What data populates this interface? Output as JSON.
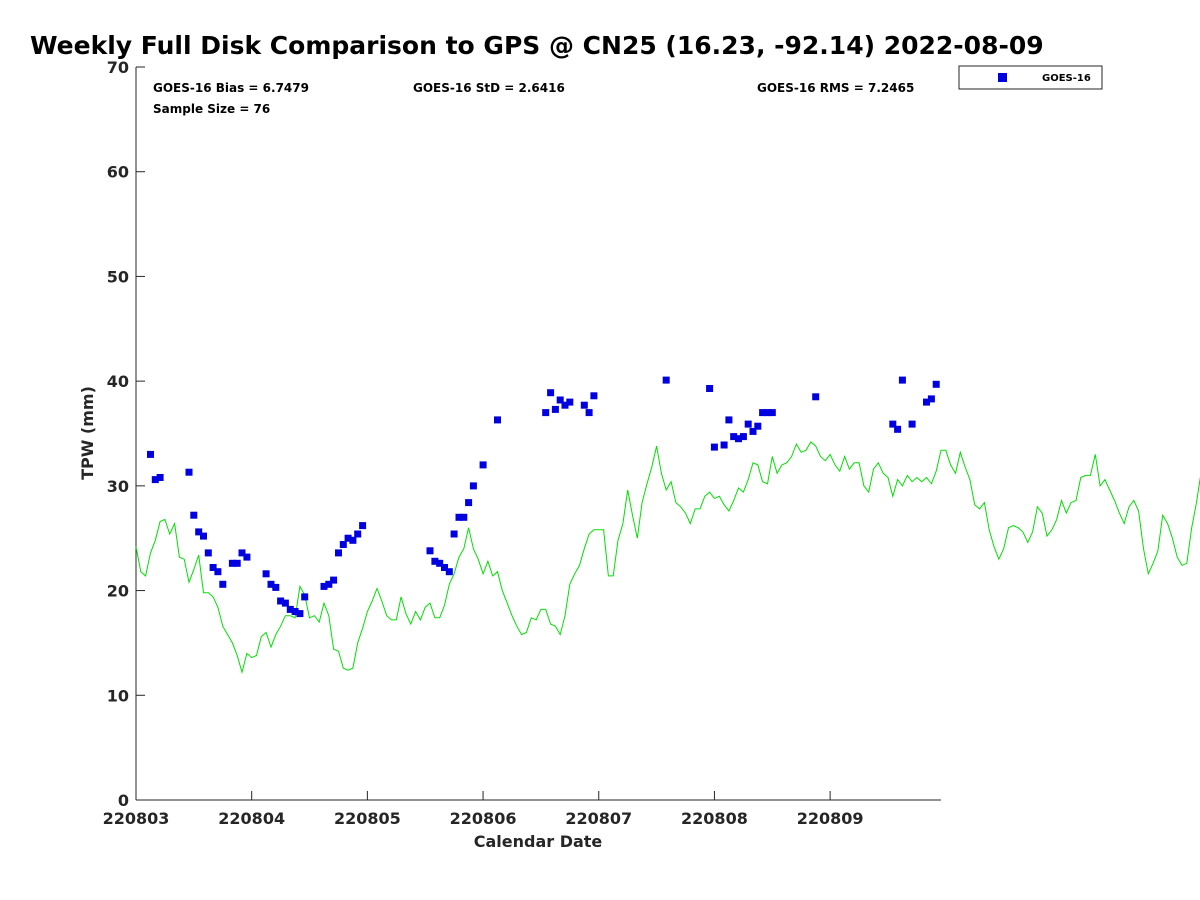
{
  "chart_data": {
    "type": "scatter",
    "title": "Weekly Full Disk Comparison to GPS @ CN25 (16.23, -92.14) 2022-08-09",
    "xlabel": "Calendar Date",
    "ylabel": "TPW (mm)",
    "x_axis_type": "date",
    "xlim": [
      "2022-08-03 00:00",
      "2022-08-09 23:00"
    ],
    "ylim": [
      0,
      70
    ],
    "yticks": [
      0,
      10,
      20,
      30,
      40,
      50,
      60,
      70
    ],
    "xticks": [
      {
        "value": "2022-08-03 00:00",
        "label": "220803"
      },
      {
        "value": "2022-08-04 00:00",
        "label": "220804"
      },
      {
        "value": "2022-08-05 00:00",
        "label": "220805"
      },
      {
        "value": "2022-08-06 00:00",
        "label": "220806"
      },
      {
        "value": "2022-08-07 00:00",
        "label": "220807"
      },
      {
        "value": "2022-08-08 00:00",
        "label": "220808"
      },
      {
        "value": "2022-08-09 00:00",
        "label": "220809"
      }
    ],
    "grid": false,
    "legend_position": "outside-top-right",
    "stats": {
      "bias": "GOES-16 Bias = 6.7479",
      "std": "GOES-16 StD = 2.6416",
      "rms": "GOES-16 RMS = 7.2465",
      "sample": "Sample Size = 76"
    },
    "series": [
      {
        "name": "GOES-16",
        "kind": "scatter",
        "marker": "square",
        "color": "#0000e0",
        "points": [
          [
            "2022-08-03 03:00",
            33.0
          ],
          [
            "2022-08-03 04:00",
            30.6
          ],
          [
            "2022-08-03 05:00",
            30.8
          ],
          [
            "2022-08-03 11:00",
            31.3
          ],
          [
            "2022-08-03 12:00",
            27.2
          ],
          [
            "2022-08-03 13:00",
            25.6
          ],
          [
            "2022-08-03 14:00",
            25.2
          ],
          [
            "2022-08-03 15:00",
            23.6
          ],
          [
            "2022-08-03 16:00",
            22.2
          ],
          [
            "2022-08-03 17:00",
            21.8
          ],
          [
            "2022-08-03 18:00",
            20.6
          ],
          [
            "2022-08-03 20:00",
            22.6
          ],
          [
            "2022-08-03 21:00",
            22.6
          ],
          [
            "2022-08-03 22:00",
            23.6
          ],
          [
            "2022-08-03 23:00",
            23.2
          ],
          [
            "2022-08-04 03:00",
            21.6
          ],
          [
            "2022-08-04 04:00",
            20.6
          ],
          [
            "2022-08-04 05:00",
            20.3
          ],
          [
            "2022-08-04 06:00",
            19.0
          ],
          [
            "2022-08-04 07:00",
            18.8
          ],
          [
            "2022-08-04 08:00",
            18.2
          ],
          [
            "2022-08-04 09:00",
            18.0
          ],
          [
            "2022-08-04 10:00",
            17.8
          ],
          [
            "2022-08-04 11:00",
            19.4
          ],
          [
            "2022-08-04 15:00",
            20.4
          ],
          [
            "2022-08-04 16:00",
            20.6
          ],
          [
            "2022-08-04 17:00",
            21.0
          ],
          [
            "2022-08-04 18:00",
            23.6
          ],
          [
            "2022-08-04 19:00",
            24.4
          ],
          [
            "2022-08-04 20:00",
            25.0
          ],
          [
            "2022-08-04 21:00",
            24.8
          ],
          [
            "2022-08-04 22:00",
            25.4
          ],
          [
            "2022-08-04 23:00",
            26.2
          ],
          [
            "2022-08-05 13:00",
            23.8
          ],
          [
            "2022-08-05 14:00",
            22.8
          ],
          [
            "2022-08-05 15:00",
            22.6
          ],
          [
            "2022-08-05 16:00",
            22.2
          ],
          [
            "2022-08-05 17:00",
            21.8
          ],
          [
            "2022-08-05 18:00",
            25.4
          ],
          [
            "2022-08-05 19:00",
            27.0
          ],
          [
            "2022-08-05 20:00",
            27.0
          ],
          [
            "2022-08-05 21:00",
            28.4
          ],
          [
            "2022-08-05 22:00",
            30.0
          ],
          [
            "2022-08-06 00:00",
            32.0
          ],
          [
            "2022-08-06 03:00",
            36.3
          ],
          [
            "2022-08-06 13:00",
            37.0
          ],
          [
            "2022-08-06 14:00",
            38.9
          ],
          [
            "2022-08-06 15:00",
            37.3
          ],
          [
            "2022-08-06 16:00",
            38.2
          ],
          [
            "2022-08-06 17:00",
            37.7
          ],
          [
            "2022-08-06 18:00",
            38.0
          ],
          [
            "2022-08-06 21:00",
            37.7
          ],
          [
            "2022-08-06 22:00",
            37.0
          ],
          [
            "2022-08-06 23:00",
            38.6
          ],
          [
            "2022-08-07 14:00",
            40.1
          ],
          [
            "2022-08-07 23:00",
            39.3
          ],
          [
            "2022-08-08 00:00",
            33.7
          ],
          [
            "2022-08-08 02:00",
            33.9
          ],
          [
            "2022-08-08 03:00",
            36.3
          ],
          [
            "2022-08-08 04:00",
            34.7
          ],
          [
            "2022-08-08 05:00",
            34.5
          ],
          [
            "2022-08-08 06:00",
            34.7
          ],
          [
            "2022-08-08 07:00",
            35.9
          ],
          [
            "2022-08-08 08:00",
            35.2
          ],
          [
            "2022-08-08 09:00",
            35.7
          ],
          [
            "2022-08-08 10:00",
            37.0
          ],
          [
            "2022-08-08 11:00",
            37.0
          ],
          [
            "2022-08-08 12:00",
            37.0
          ],
          [
            "2022-08-08 21:00",
            38.5
          ],
          [
            "2022-08-09 13:00",
            35.9
          ],
          [
            "2022-08-09 14:00",
            35.4
          ],
          [
            "2022-08-09 15:00",
            40.1
          ],
          [
            "2022-08-09 17:00",
            35.9
          ],
          [
            "2022-08-09 20:00",
            38.0
          ],
          [
            "2022-08-09 21:00",
            38.3
          ],
          [
            "2022-08-09 22:00",
            39.7
          ]
        ]
      },
      {
        "name": "",
        "kind": "line",
        "color": "#00e000",
        "start": "2022-08-03 00:00",
        "step_hours": 1,
        "values": [
          24.2,
          21.8,
          21.4,
          23.6,
          24.8,
          26.6,
          26.8,
          25.4,
          26.4,
          23.2,
          23.0,
          20.8,
          22.0,
          23.4,
          19.8,
          19.8,
          19.4,
          18.4,
          16.6,
          15.8,
          15.0,
          13.8,
          12.2,
          14.0,
          13.6,
          13.8,
          15.6,
          16.0,
          14.6,
          15.8,
          16.6,
          17.6,
          17.6,
          17.4,
          20.4,
          19.6,
          17.4,
          17.6,
          17.0,
          18.8,
          17.6,
          14.4,
          14.2,
          12.6,
          12.4,
          12.6,
          15.0,
          16.4,
          18.0,
          19.0,
          20.2,
          19.0,
          17.6,
          17.2,
          17.2,
          19.4,
          17.8,
          16.8,
          18.0,
          17.2,
          18.4,
          18.8,
          17.4,
          17.4,
          18.6,
          20.6,
          21.6,
          23.2,
          24.0,
          26.0,
          24.0,
          23.0,
          21.6,
          22.8,
          21.4,
          21.8,
          20.0,
          18.8,
          17.6,
          16.6,
          15.8,
          16.0,
          17.4,
          17.2,
          18.2,
          18.2,
          16.8,
          16.6,
          15.8,
          17.6,
          20.6,
          21.6,
          22.4,
          24.0,
          25.4,
          25.8,
          25.8,
          25.8,
          21.4,
          21.4,
          24.8,
          26.4,
          29.6,
          27.2,
          25.0,
          28.4,
          30.2,
          31.8,
          33.8,
          31.2,
          29.6,
          30.4,
          28.4,
          28.0,
          27.4,
          26.4,
          27.8,
          27.8,
          29.0,
          29.4,
          28.8,
          29.0,
          28.2,
          27.6,
          28.6,
          29.8,
          29.4,
          30.6,
          32.2,
          32.0,
          30.4,
          30.2,
          32.8,
          31.2,
          32.0,
          32.2,
          32.8,
          34.0,
          33.2,
          33.4,
          34.2,
          33.8,
          32.8,
          32.4,
          33.0,
          32.0,
          31.4,
          32.8,
          31.6,
          32.2,
          32.2,
          30.0,
          29.4,
          31.6,
          32.2,
          31.2,
          30.8,
          29.0,
          30.6,
          30.0,
          31.0,
          30.4,
          30.8,
          30.4,
          30.8,
          30.2,
          31.4,
          33.4,
          33.4,
          32.0,
          31.2,
          33.2,
          31.8,
          30.6,
          28.2,
          27.8,
          28.4,
          25.8,
          24.2,
          23.0,
          24.0,
          26.0,
          26.2,
          26.0,
          25.6,
          24.6,
          25.6,
          28.0,
          27.4,
          25.2,
          25.8,
          26.8,
          28.6,
          27.4,
          28.4,
          28.6,
          30.8,
          31.0,
          31.0,
          33.0,
          30.0,
          30.6,
          29.6,
          28.6,
          27.4,
          26.4,
          28.0,
          28.6,
          27.6,
          24.0,
          21.6,
          22.6,
          23.8,
          27.2,
          26.4,
          25.0,
          23.2,
          22.4,
          22.6,
          26.0,
          28.4,
          31.4,
          29.0,
          28.6,
          29.6,
          29.4,
          29.6,
          29.4,
          30.6,
          30.0,
          29.2,
          29.0,
          29.8,
          30.0,
          30.4,
          32.4,
          33.6,
          31.6,
          32.0,
          33.6,
          34.2,
          33.4,
          33.6,
          34.2,
          33.6,
          33.0
        ]
      }
    ]
  }
}
